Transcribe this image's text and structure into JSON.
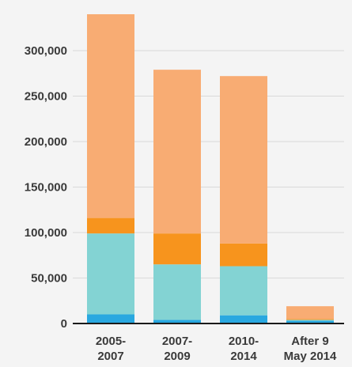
{
  "chart_data": {
    "type": "bar",
    "stacked": true,
    "categories": [
      [
        "2005-",
        "2007"
      ],
      [
        "2007-",
        "2009"
      ],
      [
        "2010-",
        "2014"
      ],
      [
        "After 9",
        "May 2014"
      ]
    ],
    "series": [
      {
        "color": "#29a8e0",
        "values": [
          10000,
          4000,
          9000,
          3000
        ]
      },
      {
        "color": "#83d3d3",
        "values": [
          89000,
          61000,
          54000,
          1000
        ]
      },
      {
        "color": "#f7941d",
        "values": [
          17000,
          34000,
          25000,
          1000
        ]
      },
      {
        "color": "#f8ac73",
        "values": [
          224000,
          180000,
          184000,
          14000
        ]
      }
    ],
    "y_ticks": [
      "0",
      "50,000",
      "100,000",
      "150,000",
      "200,000",
      "250,000",
      "300,000"
    ],
    "y_tick_values": [
      0,
      50000,
      100000,
      150000,
      200000,
      250000,
      300000
    ],
    "ylim": [
      0,
      340000
    ],
    "grid": true,
    "legend": "none",
    "title": "",
    "xlabel": "",
    "ylabel": ""
  }
}
